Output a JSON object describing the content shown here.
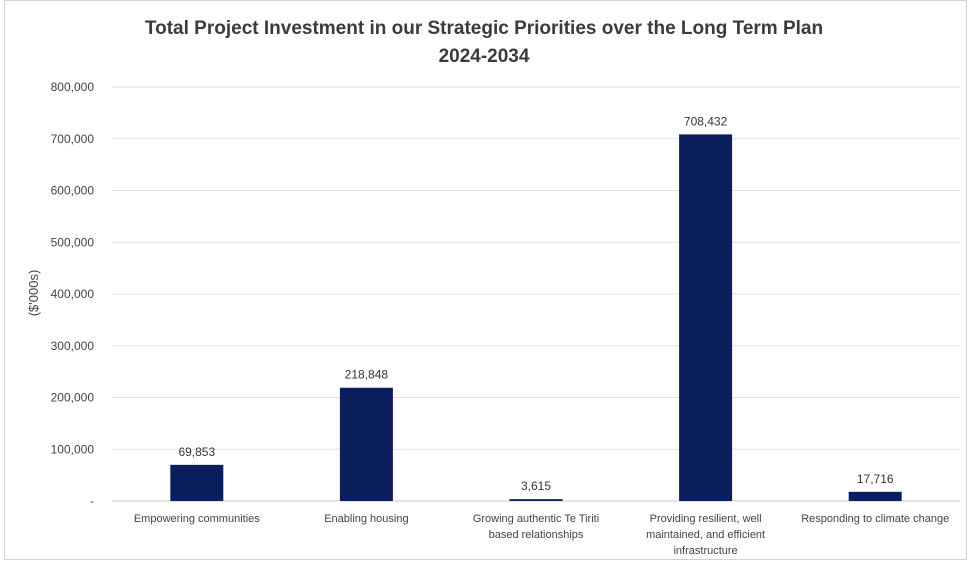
{
  "chart_data": {
    "type": "bar",
    "title": "Total Project Investment in our Strategic Priorities over the Long Term Plan",
    "subtitle": "2024-2034",
    "xlabel": "",
    "ylabel": "($'000s)",
    "ylim": [
      0,
      800000
    ],
    "yticks": [
      0,
      100000,
      200000,
      300000,
      400000,
      500000,
      600000,
      700000,
      800000
    ],
    "ytick_labels": [
      "-",
      "100,000",
      "200,000",
      "300,000",
      "400,000",
      "500,000",
      "600,000",
      "700,000",
      "800,000"
    ],
    "grid": true,
    "legend": "none",
    "bar_color": "#0b1f5c",
    "categories": [
      [
        "Empowering communities"
      ],
      [
        "Enabling housing"
      ],
      [
        "Growing authentic Te Tiriti",
        "based relationships"
      ],
      [
        "Providing resilient, well",
        "maintained, and efficient",
        "infrastructure"
      ],
      [
        "Responding to climate change"
      ]
    ],
    "values": [
      69853,
      218848,
      3615,
      708432,
      17716
    ],
    "data_labels": [
      "69,853",
      "218,848",
      "3,615",
      "708,432",
      "17,716"
    ]
  }
}
